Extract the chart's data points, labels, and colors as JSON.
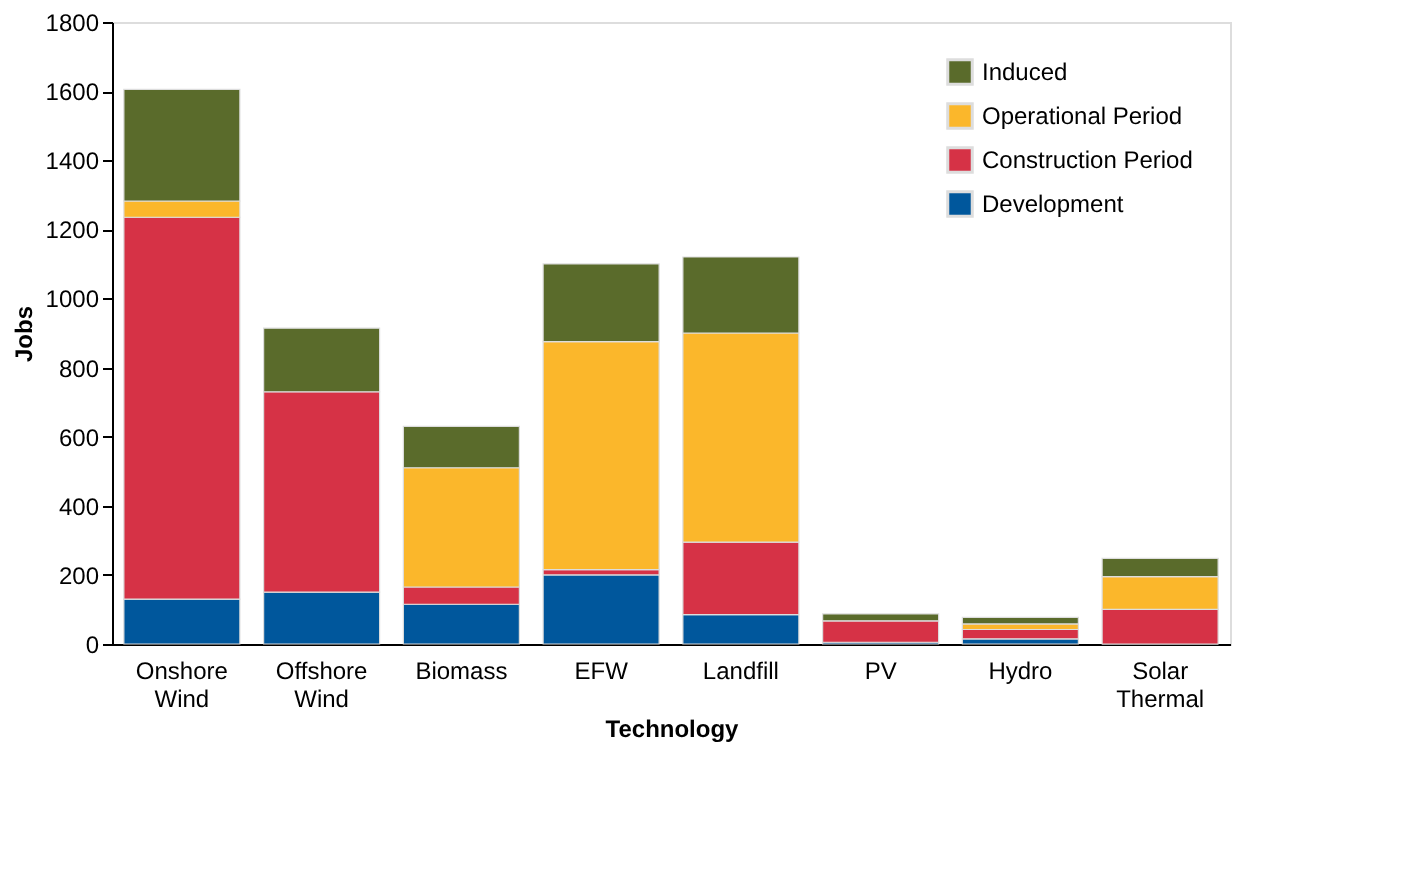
{
  "chart_data": {
    "type": "bar",
    "stacked": true,
    "xlabel": "Technology",
    "ylabel": "Jobs",
    "categories": [
      "Onshore Wind",
      "Offshore Wind",
      "Biomass",
      "EFW",
      "Landfill",
      "PV",
      "Hydro",
      "Solar Thermal"
    ],
    "series": [
      {
        "name": "Development",
        "color": "#00579c",
        "values": [
          130,
          150,
          115,
          200,
          85,
          5,
          15,
          0
        ]
      },
      {
        "name": "Construction Period",
        "color": "#d63246",
        "values": [
          1105,
          580,
          50,
          15,
          210,
          62,
          27,
          100
        ]
      },
      {
        "name": "Operational Period",
        "color": "#fbb72b",
        "values": [
          47,
          0,
          345,
          660,
          605,
          null,
          16,
          95
        ]
      },
      {
        "name": "Induced",
        "color": "#5a6b2b",
        "values": [
          323,
          184,
          120,
          225,
          220,
          20,
          19,
          53
        ]
      }
    ],
    "ylim": [
      0,
      1800
    ],
    "yticks": [
      0,
      200,
      400,
      600,
      800,
      1000,
      1200,
      1400,
      1600,
      1800
    ],
    "grid": false,
    "legend": "top right"
  }
}
